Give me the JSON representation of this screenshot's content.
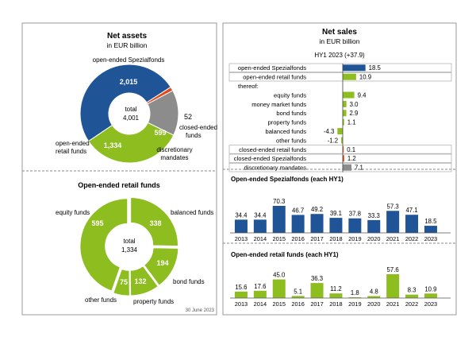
{
  "colors": {
    "navy": "#1f5597",
    "green": "#8dbd1e",
    "grey": "#8c8c8c",
    "red": "#e2491b",
    "border": "#9a9a9a"
  },
  "chart_data": [
    {
      "id": "net-assets",
      "type": "pie",
      "title": "Net assets",
      "subtitle": "in EUR billion",
      "center_label": "total",
      "center_value": "4,001",
      "slices": [
        {
          "label": "open-ended Spezialfonds",
          "value": 2015,
          "value_label": "2,015",
          "color": "#1f5597"
        },
        {
          "label": "closed-ended funds",
          "value": 52,
          "value_label": "52",
          "color": "#e2491b"
        },
        {
          "label": "discretionary mandates",
          "value": 599,
          "value_label": "599",
          "color": "#8c8c8c"
        },
        {
          "label": "open-ended retail funds",
          "value": 1334,
          "value_label": "1,334",
          "color": "#8dbd1e"
        }
      ]
    },
    {
      "id": "retail-funds",
      "type": "pie",
      "title": "Open-ended retail funds",
      "center_label": "total",
      "center_value": "1,334",
      "footnote": "30 June 2023",
      "slices": [
        {
          "label": "balanced funds",
          "value": 338,
          "value_label": "338",
          "color": "#8dbd1e"
        },
        {
          "label": "bond funds",
          "value": 194,
          "value_label": "194",
          "color": "#8dbd1e"
        },
        {
          "label": "property funds",
          "value": 132,
          "value_label": "132",
          "color": "#8dbd1e"
        },
        {
          "label": "other funds",
          "value": 75,
          "value_label": "75",
          "color": "#8dbd1e"
        },
        {
          "label": "equity funds",
          "value": 595,
          "value_label": "595",
          "color": "#8dbd1e"
        }
      ]
    },
    {
      "id": "net-sales",
      "type": "bar",
      "orientation": "horizontal",
      "title": "Net sales",
      "subtitle": "in EUR billion",
      "period_label": "HY1 2023 (+37.9)",
      "rows": [
        {
          "label": "open-ended Spezialfonds",
          "value": 18.5,
          "value_label": "18.5",
          "color": "#1f5597",
          "boxed": true
        },
        {
          "label": "open-ended retail funds",
          "value": 10.9,
          "value_label": "10.9",
          "color": "#8dbd1e",
          "boxed": true
        },
        {
          "label": "thereof:",
          "value": null,
          "value_label": "",
          "color": "",
          "boxed": false
        },
        {
          "label": "equity funds",
          "value": 9.4,
          "value_label": "9.4",
          "color": "#8dbd1e",
          "boxed": false
        },
        {
          "label": "money market funds",
          "value": 3.0,
          "value_label": "3.0",
          "color": "#8dbd1e",
          "boxed": false
        },
        {
          "label": "bond funds",
          "value": 2.9,
          "value_label": "2.9",
          "color": "#8dbd1e",
          "boxed": false
        },
        {
          "label": "property funds",
          "value": 1.1,
          "value_label": "1.1",
          "color": "#8dbd1e",
          "boxed": false
        },
        {
          "label": "balanced funds",
          "value": -4.3,
          "value_label": "-4.3",
          "color": "#8dbd1e",
          "boxed": false
        },
        {
          "label": "other funds",
          "value": -1.2,
          "value_label": "-1.2",
          "color": "#8dbd1e",
          "boxed": false
        },
        {
          "label": "closed-ended retail funds",
          "value": 0.1,
          "value_label": "0.1",
          "color": "#e2491b",
          "boxed": true
        },
        {
          "label": "closed-ended Spezialfonds",
          "value": 1.2,
          "value_label": "1.2",
          "color": "#e2491b",
          "boxed": true
        },
        {
          "label": "discretionary mandates",
          "value": 7.1,
          "value_label": "7.1",
          "color": "#8c8c8c",
          "boxed": true
        }
      ]
    },
    {
      "id": "spezialfonds-hy1",
      "type": "bar",
      "title": "Open-ended Spezialfonds (each HY1)",
      "categories": [
        "2013",
        "2014",
        "2015",
        "2016",
        "2017",
        "2018",
        "2019",
        "2020",
        "2021",
        "2022",
        "2023"
      ],
      "values": [
        34.4,
        34.4,
        70.3,
        46.7,
        49.2,
        39.1,
        37.8,
        33.3,
        57.3,
        47.1,
        18.5
      ],
      "value_labels": [
        "34.4",
        "34.4",
        "70.3",
        "46.7",
        "49.2",
        "39.1",
        "37.8",
        "33.3",
        "57.3",
        "47.1",
        "18.5"
      ],
      "color": "#1f5597"
    },
    {
      "id": "retail-hy1",
      "type": "bar",
      "title": "Open-ended retail funds (each HY1)",
      "categories": [
        "2013",
        "2014",
        "2015",
        "2016",
        "2017",
        "2018",
        "2019",
        "2020",
        "2021",
        "2022",
        "2023"
      ],
      "values": [
        15.6,
        17.6,
        45.0,
        5.1,
        36.3,
        11.2,
        1.8,
        4.8,
        57.6,
        8.3,
        10.9
      ],
      "value_labels": [
        "15.6",
        "17.6",
        "45.0",
        "5.1",
        "36.3",
        "11.2",
        "1.8",
        "4.8",
        "57.6",
        "8.3",
        "10.9"
      ],
      "color": "#8dbd1e"
    }
  ]
}
